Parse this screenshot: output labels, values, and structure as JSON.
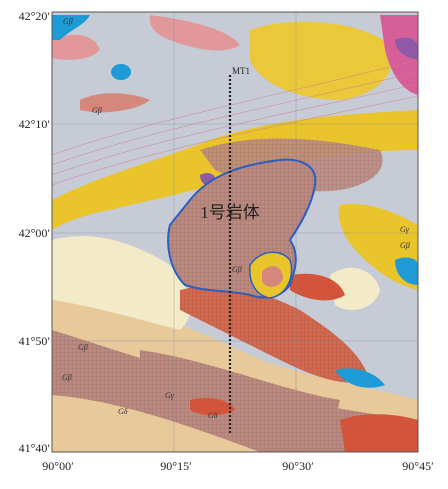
{
  "map": {
    "lat_labels": [
      "42°20′",
      "42°10′",
      "42°00′",
      "41°50′",
      "41°40′"
    ],
    "lon_labels": [
      "90°00′",
      "90°15′",
      "90°30′",
      "90°45′"
    ],
    "body_label": "1号岩体",
    "profile_label": "MT1",
    "unit_labels": [
      "Gβ",
      "Gβ",
      "Gβ",
      "Gβ",
      "Gγ",
      "Gδ",
      "Gδ",
      "Gβ",
      "Gγ",
      "Gβ"
    ]
  }
}
